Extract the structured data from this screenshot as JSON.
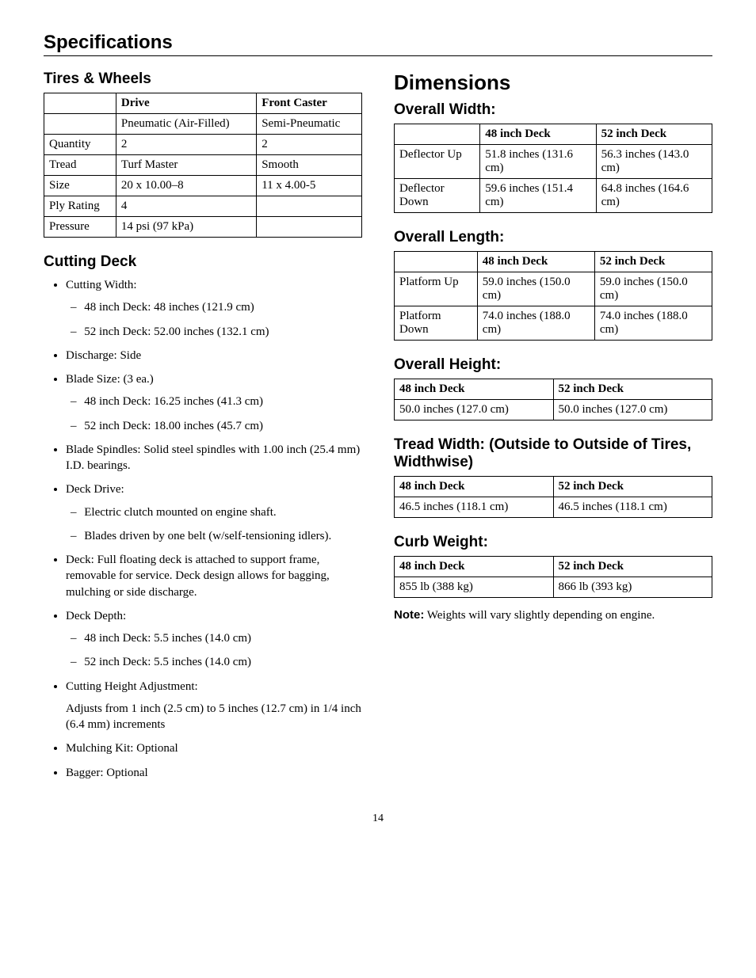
{
  "page": {
    "title": "Specifications",
    "number": "14"
  },
  "left": {
    "tiresTitle": "Tires & Wheels",
    "tiresTable": {
      "headers": [
        "",
        "Drive",
        "Front Caster"
      ],
      "rows": [
        [
          "",
          "Pneumatic (Air-Filled)",
          "Semi-Pneumatic"
        ],
        [
          "Quantity",
          "2",
          "2"
        ],
        [
          "Tread",
          "Turf Master",
          "Smooth"
        ],
        [
          "Size",
          "20 x 10.00–8",
          "11 x 4.00-5"
        ],
        [
          "Ply Rating",
          "4",
          ""
        ],
        [
          "Pressure",
          "14 psi (97 kPa)",
          ""
        ]
      ]
    },
    "cuttingTitle": "Cutting Deck",
    "cutting": {
      "widthLabel": "Cutting Width:",
      "width48": "48 inch Deck: 48 inches (121.9 cm)",
      "width52": "52 inch Deck: 52.00 inches (132.1 cm)",
      "discharge": "Discharge: Side",
      "bladeSizeLabel": "Blade Size: (3 ea.)",
      "blade48": "48 inch Deck: 16.25 inches (41.3 cm)",
      "blade52": "52 inch Deck: 18.00 inches (45.7 cm)",
      "spindles": "Blade Spindles: Solid steel spindles with 1.00 inch (25.4 mm) I.D. bearings.",
      "deckDriveLabel": "Deck Drive:",
      "drive1": "Electric clutch mounted on engine shaft.",
      "drive2": "Blades driven by one belt (w/self-tensioning idlers).",
      "deck": "Deck: Full floating deck is attached to support frame, removable for service. Deck design allows for bagging, mulching or side discharge.",
      "depthLabel": "Deck Depth:",
      "depth48": "48 inch Deck: 5.5 inches (14.0 cm)",
      "depth52": "52 inch Deck: 5.5 inches (14.0 cm)",
      "heightLabel": "Cutting Height Adjustment:",
      "heightText": "Adjusts from 1 inch (2.5 cm) to 5 inches (12.7 cm) in 1/4 inch (6.4 mm) increments",
      "mulching": "Mulching Kit: Optional",
      "bagger": "Bagger: Optional"
    }
  },
  "right": {
    "dimTitle": "Dimensions",
    "widthTitle": "Overall Width:",
    "widthTable": {
      "headers": [
        "",
        "48 inch Deck",
        "52 inch Deck"
      ],
      "rows": [
        [
          "Deflector Up",
          "51.8 inches (131.6 cm)",
          "56.3 inches (143.0 cm)"
        ],
        [
          "Deflector Down",
          "59.6 inches (151.4 cm)",
          "64.8 inches (164.6 cm)"
        ]
      ]
    },
    "lengthTitle": "Overall Length:",
    "lengthTable": {
      "headers": [
        "",
        "48 inch Deck",
        "52 inch Deck"
      ],
      "rows": [
        [
          "Platform Up",
          "59.0 inches (150.0 cm)",
          "59.0 inches (150.0 cm)"
        ],
        [
          "Platform Down",
          "74.0 inches (188.0 cm)",
          "74.0 inches (188.0 cm)"
        ]
      ]
    },
    "heightTitle": "Overall Height:",
    "heightTable": {
      "headers": [
        "48 inch Deck",
        "52 inch Deck"
      ],
      "rows": [
        [
          "50.0 inches (127.0 cm)",
          "50.0 inches (127.0 cm)"
        ]
      ]
    },
    "treadTitle": "Tread Width: (Outside to Outside of Tires, Widthwise)",
    "treadTable": {
      "headers": [
        "48 inch Deck",
        "52 inch Deck"
      ],
      "rows": [
        [
          "46.5 inches (118.1 cm)",
          "46.5 inches (118.1 cm)"
        ]
      ]
    },
    "curbTitle": "Curb Weight:",
    "curbTable": {
      "headers": [
        "48 inch Deck",
        "52 inch Deck"
      ],
      "rows": [
        [
          "855 lb (388 kg)",
          "866 lb (393 kg)"
        ]
      ]
    },
    "noteLabel": "Note:",
    "noteText": " Weights will vary slightly depending on engine."
  }
}
